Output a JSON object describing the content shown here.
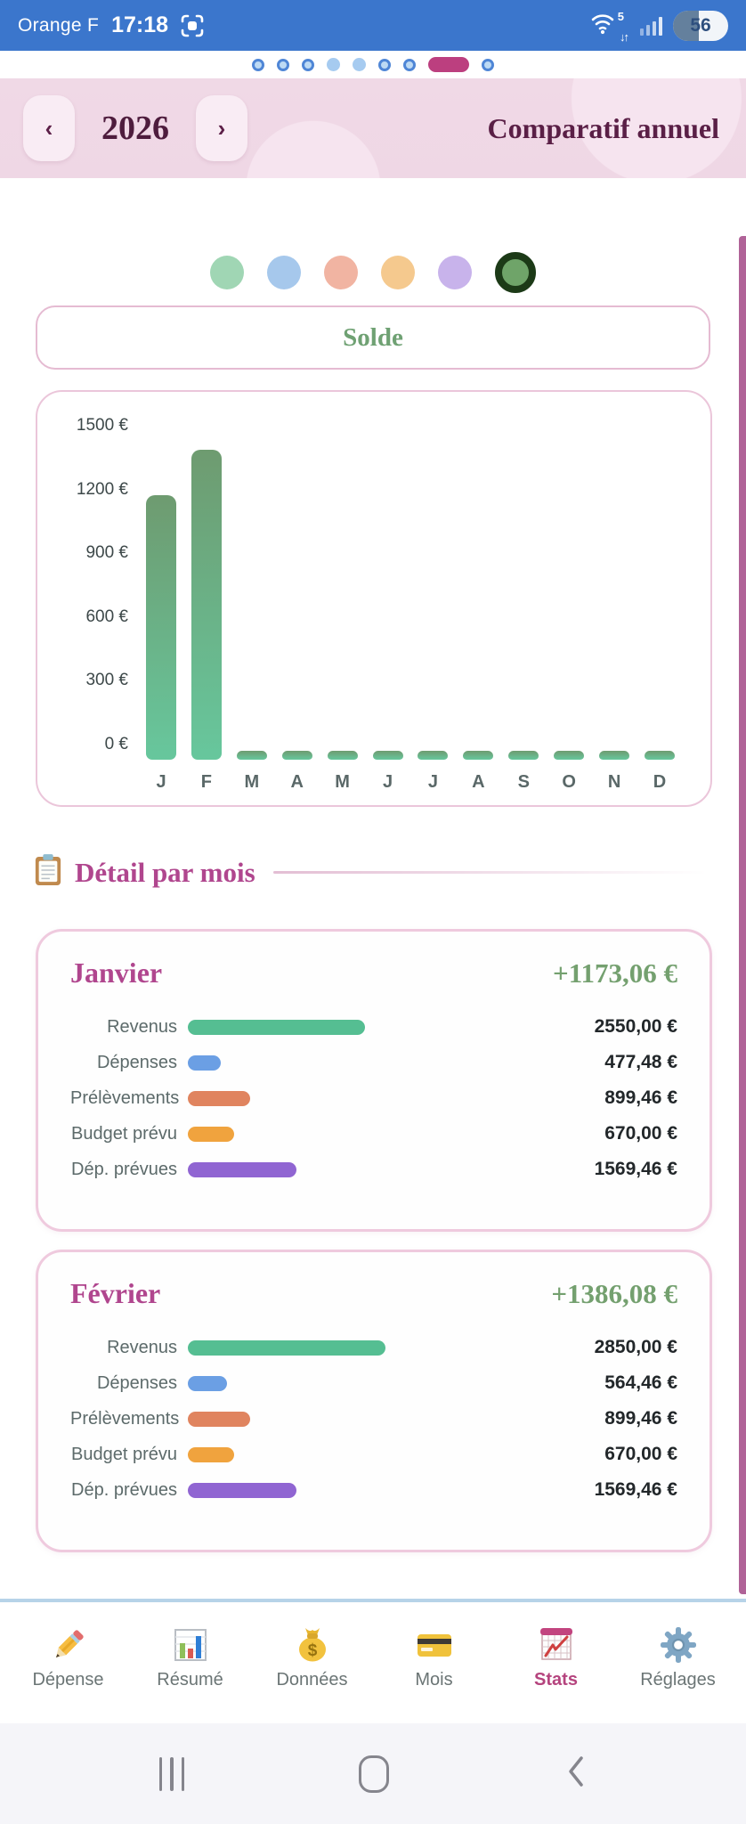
{
  "status_bar": {
    "carrier": "Orange F",
    "time": "17:18",
    "battery_percent": "56",
    "wifi_generation": "5",
    "wifi_arrows": "↓↑"
  },
  "page_indicator": {
    "dots": [
      "ring",
      "ring",
      "ring",
      "solid",
      "solid",
      "ring",
      "ring",
      "active",
      "ring"
    ],
    "active_color": "#BC3F7F"
  },
  "header": {
    "prev": "‹",
    "year": "2026",
    "next": "›",
    "title": "Comparatif annuel"
  },
  "metric_dots": [
    {
      "name": "mint",
      "color": "#A0D6B4",
      "selected": false
    },
    {
      "name": "blue",
      "color": "#A6C8EC",
      "selected": false
    },
    {
      "name": "salmon",
      "color": "#F1B4A2",
      "selected": false
    },
    {
      "name": "peach",
      "color": "#F5C98E",
      "selected": false
    },
    {
      "name": "lavender",
      "color": "#C8B3EB",
      "selected": false
    },
    {
      "name": "green",
      "color": "#6FA469",
      "selected": true,
      "ring_color": "#1C3A17"
    }
  ],
  "solde_label": "Solde",
  "chart_data": {
    "type": "bar",
    "title": "Solde",
    "categories": [
      "J",
      "F",
      "M",
      "A",
      "M",
      "J",
      "J",
      "A",
      "S",
      "O",
      "N",
      "D"
    ],
    "values": [
      1173.06,
      1386.08,
      0,
      0,
      0,
      0,
      0,
      0,
      0,
      0,
      0,
      0
    ],
    "yticks": [
      1500,
      1200,
      900,
      600,
      300,
      0
    ],
    "ytick_labels": [
      "1500 €",
      "1200 €",
      "900 €",
      "600 €",
      "300 €",
      "0 €"
    ],
    "ylim": [
      0,
      1500
    ],
    "xlabel": "",
    "ylabel": "",
    "grid": false,
    "legend": "none",
    "bar_gradient": [
      "#6E9B70",
      "#67C79D"
    ]
  },
  "detail_section": {
    "title": "Détail par mois"
  },
  "month_cards": [
    {
      "name": "Janvier",
      "total": "+1173,06 €",
      "rows": [
        {
          "label": "Revenus",
          "value": "2550,00 €",
          "amount": 2550.0,
          "color": "#55BE92"
        },
        {
          "label": "Dépenses",
          "value": "477,48 €",
          "amount": 477.48,
          "color": "#6B9FE4"
        },
        {
          "label": "Prélèvements",
          "value": "899,46 €",
          "amount": 899.46,
          "color": "#E0845F"
        },
        {
          "label": "Budget prévu",
          "value": "670,00 €",
          "amount": 670.0,
          "color": "#F0A33E"
        },
        {
          "label": "Dép. prévues",
          "value": "1569,46 €",
          "amount": 1569.46,
          "color": "#9065D2"
        }
      ]
    },
    {
      "name": "Février",
      "total": "+1386,08 €",
      "rows": [
        {
          "label": "Revenus",
          "value": "2850,00 €",
          "amount": 2850.0,
          "color": "#55BE92"
        },
        {
          "label": "Dépenses",
          "value": "564,46 €",
          "amount": 564.46,
          "color": "#6B9FE4"
        },
        {
          "label": "Prélèvements",
          "value": "899,46 €",
          "amount": 899.46,
          "color": "#E0845F"
        },
        {
          "label": "Budget prévu",
          "value": "670,00 €",
          "amount": 670.0,
          "color": "#F0A33E"
        },
        {
          "label": "Dép. prévues",
          "value": "1569,46 €",
          "amount": 1569.46,
          "color": "#9065D2"
        }
      ]
    }
  ],
  "bottom_nav": {
    "active_color": "#B5447E",
    "items": [
      {
        "label": "Dépense",
        "icon": "pencil-icon",
        "active": false
      },
      {
        "label": "Résumé",
        "icon": "summary-chart-icon",
        "active": false
      },
      {
        "label": "Données",
        "icon": "money-bag-icon",
        "active": false
      },
      {
        "label": "Mois",
        "icon": "credit-card-icon",
        "active": false
      },
      {
        "label": "Stats",
        "icon": "stats-chart-icon",
        "active": true
      },
      {
        "label": "Réglages",
        "icon": "gear-icon",
        "active": false
      }
    ]
  },
  "gesture_bar": {
    "items": [
      {
        "icon": "recents-icon"
      },
      {
        "icon": "home-icon"
      },
      {
        "icon": "back-icon"
      }
    ]
  }
}
